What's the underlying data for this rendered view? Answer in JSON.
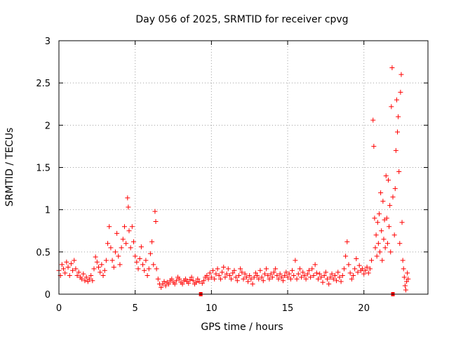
{
  "chart_data": {
    "type": "scatter",
    "title": "Day 056 of 2025, SRMTID for receiver cpvg",
    "xlabel": "GPS time / hours",
    "ylabel": "SRMTID / TECUs",
    "xlim": [
      0,
      24.2
    ],
    "ylim": [
      0,
      3
    ],
    "x_ticks": [
      "0",
      "5",
      "10",
      "15",
      "20"
    ],
    "x_tick_values": [
      0,
      5,
      10,
      15,
      20
    ],
    "y_ticks": [
      "0",
      "0.5",
      "1",
      "1.5",
      "2",
      "2.5",
      "3"
    ],
    "y_tick_values": [
      0,
      0.5,
      1,
      1.5,
      2,
      2.5,
      3
    ],
    "grid": true,
    "marker": "+",
    "marker_color": "#ff0000",
    "gaps": [
      {
        "x": 9.3,
        "y": 0
      },
      {
        "x": 21.9,
        "y": 0
      }
    ],
    "series": [
      {
        "name": "SRMTID",
        "points": [
          [
            0.0,
            0.28
          ],
          [
            0.1,
            0.22
          ],
          [
            0.2,
            0.35
          ],
          [
            0.3,
            0.3
          ],
          [
            0.4,
            0.25
          ],
          [
            0.5,
            0.38
          ],
          [
            0.6,
            0.32
          ],
          [
            0.7,
            0.22
          ],
          [
            0.8,
            0.36
          ],
          [
            0.9,
            0.28
          ],
          [
            1.0,
            0.4
          ],
          [
            1.1,
            0.3
          ],
          [
            1.2,
            0.22
          ],
          [
            1.3,
            0.26
          ],
          [
            1.4,
            0.2
          ],
          [
            1.5,
            0.18
          ],
          [
            1.6,
            0.24
          ],
          [
            1.7,
            0.16
          ],
          [
            1.8,
            0.2
          ],
          [
            1.9,
            0.15
          ],
          [
            2.0,
            0.18
          ],
          [
            2.1,
            0.22
          ],
          [
            2.2,
            0.16
          ],
          [
            2.3,
            0.3
          ],
          [
            2.4,
            0.44
          ],
          [
            2.5,
            0.38
          ],
          [
            2.6,
            0.32
          ],
          [
            2.7,
            0.26
          ],
          [
            2.8,
            0.35
          ],
          [
            2.9,
            0.22
          ],
          [
            3.0,
            0.28
          ],
          [
            3.1,
            0.4
          ],
          [
            3.2,
            0.6
          ],
          [
            3.3,
            0.8
          ],
          [
            3.4,
            0.55
          ],
          [
            3.5,
            0.4
          ],
          [
            3.6,
            0.32
          ],
          [
            3.7,
            0.5
          ],
          [
            3.8,
            0.72
          ],
          [
            3.9,
            0.45
          ],
          [
            4.0,
            0.35
          ],
          [
            4.1,
            0.55
          ],
          [
            4.2,
            0.65
          ],
          [
            4.3,
            0.8
          ],
          [
            4.4,
            0.6
          ],
          [
            4.5,
            1.14
          ],
          [
            4.55,
            1.03
          ],
          [
            4.6,
            0.75
          ],
          [
            4.7,
            0.55
          ],
          [
            4.8,
            0.8
          ],
          [
            4.9,
            0.62
          ],
          [
            5.0,
            0.45
          ],
          [
            5.1,
            0.38
          ],
          [
            5.2,
            0.3
          ],
          [
            5.3,
            0.42
          ],
          [
            5.4,
            0.56
          ],
          [
            5.5,
            0.35
          ],
          [
            5.6,
            0.28
          ],
          [
            5.7,
            0.4
          ],
          [
            5.8,
            0.22
          ],
          [
            5.9,
            0.3
          ],
          [
            6.0,
            0.48
          ],
          [
            6.1,
            0.62
          ],
          [
            6.2,
            0.35
          ],
          [
            6.3,
            0.98
          ],
          [
            6.35,
            0.86
          ],
          [
            6.4,
            0.3
          ],
          [
            6.5,
            0.18
          ],
          [
            6.6,
            0.12
          ],
          [
            6.7,
            0.08
          ],
          [
            6.8,
            0.12
          ],
          [
            6.9,
            0.15
          ],
          [
            7.0,
            0.1
          ],
          [
            7.1,
            0.14
          ],
          [
            7.2,
            0.12
          ],
          [
            7.3,
            0.16
          ],
          [
            7.4,
            0.18
          ],
          [
            7.5,
            0.14
          ],
          [
            7.6,
            0.12
          ],
          [
            7.7,
            0.16
          ],
          [
            7.8,
            0.2
          ],
          [
            7.9,
            0.18
          ],
          [
            8.0,
            0.14
          ],
          [
            8.1,
            0.12
          ],
          [
            8.2,
            0.16
          ],
          [
            8.3,
            0.18
          ],
          [
            8.4,
            0.15
          ],
          [
            8.5,
            0.13
          ],
          [
            8.6,
            0.17
          ],
          [
            8.7,
            0.2
          ],
          [
            8.8,
            0.16
          ],
          [
            8.9,
            0.12
          ],
          [
            9.0,
            0.14
          ],
          [
            9.1,
            0.18
          ],
          [
            9.2,
            0.15
          ],
          [
            9.4,
            0.13
          ],
          [
            9.5,
            0.16
          ],
          [
            9.6,
            0.2
          ],
          [
            9.7,
            0.22
          ],
          [
            9.8,
            0.18
          ],
          [
            9.9,
            0.25
          ],
          [
            10.0,
            0.2
          ],
          [
            10.1,
            0.28
          ],
          [
            10.2,
            0.18
          ],
          [
            10.3,
            0.24
          ],
          [
            10.4,
            0.3
          ],
          [
            10.5,
            0.22
          ],
          [
            10.6,
            0.18
          ],
          [
            10.7,
            0.26
          ],
          [
            10.8,
            0.32
          ],
          [
            10.9,
            0.2
          ],
          [
            11.0,
            0.24
          ],
          [
            11.1,
            0.3
          ],
          [
            11.2,
            0.22
          ],
          [
            11.3,
            0.18
          ],
          [
            11.4,
            0.25
          ],
          [
            11.5,
            0.28
          ],
          [
            11.6,
            0.2
          ],
          [
            11.7,
            0.16
          ],
          [
            11.8,
            0.22
          ],
          [
            11.9,
            0.3
          ],
          [
            12.0,
            0.26
          ],
          [
            12.1,
            0.18
          ],
          [
            12.2,
            0.24
          ],
          [
            12.3,
            0.2
          ],
          [
            12.4,
            0.15
          ],
          [
            12.5,
            0.22
          ],
          [
            12.6,
            0.18
          ],
          [
            12.7,
            0.12
          ],
          [
            12.8,
            0.2
          ],
          [
            12.9,
            0.25
          ],
          [
            13.0,
            0.22
          ],
          [
            13.1,
            0.18
          ],
          [
            13.2,
            0.28
          ],
          [
            13.3,
            0.2
          ],
          [
            13.4,
            0.16
          ],
          [
            13.5,
            0.24
          ],
          [
            13.6,
            0.3
          ],
          [
            13.7,
            0.22
          ],
          [
            13.8,
            0.18
          ],
          [
            13.9,
            0.24
          ],
          [
            14.0,
            0.2
          ],
          [
            14.1,
            0.26
          ],
          [
            14.2,
            0.3
          ],
          [
            14.3,
            0.22
          ],
          [
            14.4,
            0.18
          ],
          [
            14.5,
            0.24
          ],
          [
            14.6,
            0.2
          ],
          [
            14.7,
            0.16
          ],
          [
            14.8,
            0.22
          ],
          [
            14.9,
            0.26
          ],
          [
            15.0,
            0.2
          ],
          [
            15.1,
            0.24
          ],
          [
            15.2,
            0.18
          ],
          [
            15.3,
            0.28
          ],
          [
            15.4,
            0.22
          ],
          [
            15.5,
            0.4
          ],
          [
            15.6,
            0.18
          ],
          [
            15.7,
            0.24
          ],
          [
            15.8,
            0.3
          ],
          [
            15.9,
            0.2
          ],
          [
            16.0,
            0.26
          ],
          [
            16.1,
            0.22
          ],
          [
            16.2,
            0.18
          ],
          [
            16.3,
            0.24
          ],
          [
            16.4,
            0.28
          ],
          [
            16.5,
            0.2
          ],
          [
            16.6,
            0.3
          ],
          [
            16.7,
            0.22
          ],
          [
            16.8,
            0.35
          ],
          [
            16.9,
            0.25
          ],
          [
            17.0,
            0.18
          ],
          [
            17.1,
            0.24
          ],
          [
            17.2,
            0.2
          ],
          [
            17.3,
            0.14
          ],
          [
            17.4,
            0.22
          ],
          [
            17.5,
            0.26
          ],
          [
            17.6,
            0.18
          ],
          [
            17.7,
            0.12
          ],
          [
            17.8,
            0.2
          ],
          [
            17.9,
            0.24
          ],
          [
            18.0,
            0.18
          ],
          [
            18.1,
            0.22
          ],
          [
            18.2,
            0.16
          ],
          [
            18.3,
            0.26
          ],
          [
            18.4,
            0.2
          ],
          [
            18.5,
            0.15
          ],
          [
            18.6,
            0.22
          ],
          [
            18.7,
            0.3
          ],
          [
            18.8,
            0.45
          ],
          [
            18.9,
            0.62
          ],
          [
            19.0,
            0.35
          ],
          [
            19.1,
            0.25
          ],
          [
            19.2,
            0.18
          ],
          [
            19.3,
            0.22
          ],
          [
            19.4,
            0.3
          ],
          [
            19.5,
            0.42
          ],
          [
            19.6,
            0.26
          ],
          [
            19.7,
            0.34
          ],
          [
            19.8,
            0.28
          ],
          [
            19.9,
            0.3
          ],
          [
            20.0,
            0.24
          ],
          [
            20.1,
            0.28
          ],
          [
            20.2,
            0.32
          ],
          [
            20.3,
            0.25
          ],
          [
            20.4,
            0.3
          ],
          [
            20.5,
            0.4
          ],
          [
            20.6,
            2.06
          ],
          [
            20.65,
            1.75
          ],
          [
            20.7,
            0.9
          ],
          [
            20.75,
            0.55
          ],
          [
            20.8,
            0.7
          ],
          [
            20.85,
            0.45
          ],
          [
            20.9,
            0.85
          ],
          [
            20.95,
            0.6
          ],
          [
            21.0,
            0.95
          ],
          [
            21.05,
            0.5
          ],
          [
            21.1,
            1.2
          ],
          [
            21.15,
            0.75
          ],
          [
            21.2,
            0.4
          ],
          [
            21.25,
            1.1
          ],
          [
            21.3,
            0.65
          ],
          [
            21.35,
            0.88
          ],
          [
            21.4,
            0.55
          ],
          [
            21.45,
            1.4
          ],
          [
            21.5,
            0.9
          ],
          [
            21.55,
            0.6
          ],
          [
            21.6,
            1.35
          ],
          [
            21.65,
            0.8
          ],
          [
            21.7,
            1.05
          ],
          [
            21.75,
            0.5
          ],
          [
            21.8,
            2.22
          ],
          [
            21.85,
            2.68
          ],
          [
            21.9,
            1.15
          ],
          [
            22.0,
            0.7
          ],
          [
            22.05,
            1.25
          ],
          [
            22.1,
            1.7
          ],
          [
            22.15,
            2.3
          ],
          [
            22.2,
            1.92
          ],
          [
            22.25,
            2.1
          ],
          [
            22.3,
            1.45
          ],
          [
            22.35,
            0.6
          ],
          [
            22.4,
            2.39
          ],
          [
            22.45,
            2.6
          ],
          [
            22.5,
            0.85
          ],
          [
            22.55,
            0.4
          ],
          [
            22.6,
            0.3
          ],
          [
            22.65,
            0.2
          ],
          [
            22.7,
            0.1
          ],
          [
            22.75,
            0.05
          ],
          [
            22.8,
            0.15
          ],
          [
            22.85,
            0.25
          ],
          [
            22.9,
            0.18
          ]
        ]
      }
    ]
  }
}
